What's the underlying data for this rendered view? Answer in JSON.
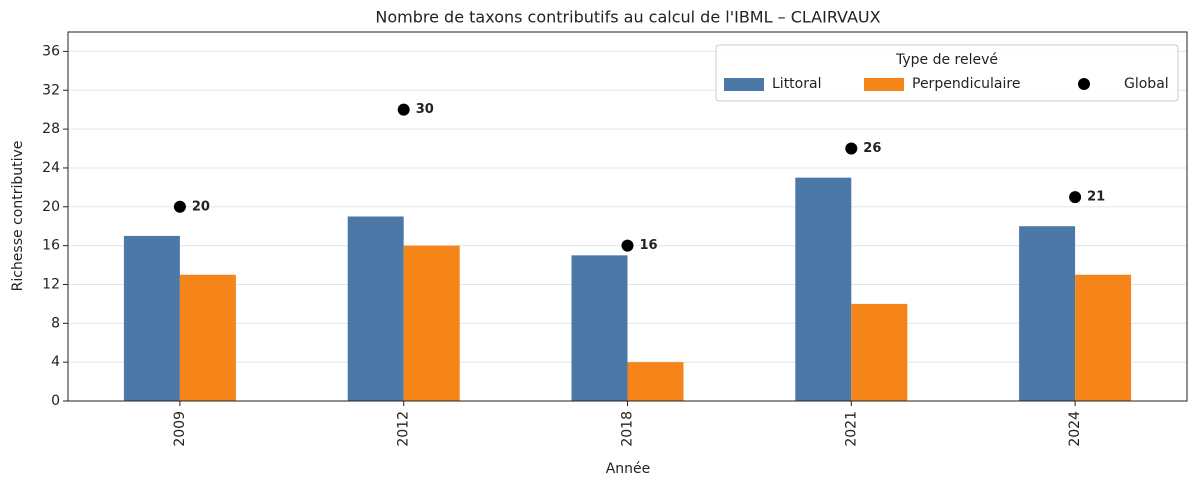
{
  "chart_data": {
    "type": "bar",
    "title": "Nombre de taxons contributifs au calcul de l'IBML – CLAIRVAUX",
    "x_label": "Année",
    "y_label": "Richesse contributive",
    "categories": [
      "2009",
      "2012",
      "2018",
      "2021",
      "2024"
    ],
    "series": [
      {
        "name": "Littoral",
        "type": "bar",
        "color": "#4c78a8",
        "values": [
          17,
          19,
          15,
          23,
          18
        ]
      },
      {
        "name": "Perpendiculaire",
        "type": "bar",
        "color": "#f58518",
        "values": [
          13,
          16,
          4,
          10,
          13
        ]
      },
      {
        "name": "Global",
        "type": "scatter",
        "color": "#000000",
        "values": [
          20,
          30,
          16,
          26,
          21
        ]
      }
    ],
    "legend_title": "Type de relevé",
    "legend": "upper right",
    "ylim": [
      0,
      38
    ],
    "yticks": [
      0,
      4,
      8,
      12,
      16,
      20,
      24,
      28,
      32,
      36
    ],
    "grid": true
  }
}
